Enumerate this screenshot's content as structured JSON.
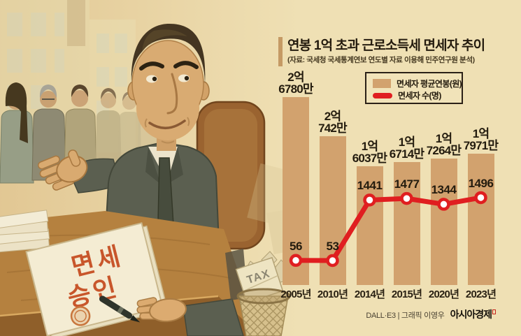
{
  "header": {
    "title": "연봉 1억 초과 근로소득세 면세자 추이",
    "subtitle": "(자료: 국세청 국세통계연보 연도별 자료 이용해 민주연구원 분석)"
  },
  "legend": {
    "items": [
      {
        "label": "면세자 평균연봉(원)",
        "type": "bar"
      },
      {
        "label": "면세자 수(명)",
        "type": "line"
      }
    ]
  },
  "chart_data": {
    "type": "bar+line",
    "categories": [
      "2005년",
      "2010년",
      "2014년",
      "2015년",
      "2020년",
      "2023년"
    ],
    "series": [
      {
        "name": "면세자 평균연봉(원)",
        "type": "bar",
        "unit": "만원",
        "values": [
          26780,
          20742,
          16037,
          16714,
          17264,
          17971
        ],
        "value_labels": [
          "2억\n6780만",
          "2억\n742만",
          "1억\n6037만",
          "1억\n6714만",
          "1억\n7264만",
          "1억\n7971만"
        ]
      },
      {
        "name": "면세자 수(명)",
        "type": "line",
        "values": [
          56,
          53,
          1441,
          1477,
          1344,
          1496
        ],
        "value_labels": [
          "56",
          "53",
          "1441",
          "1477",
          "1344",
          "1496"
        ]
      }
    ],
    "legend_position": "top-right",
    "grid": false,
    "title": "연봉 1억 초과 근로소득세 면세자 추이"
  },
  "illustration": {
    "document_text_line1": "면세",
    "document_text_line2": "승인",
    "tax_paper_label": "TAX"
  },
  "footer": {
    "credit": "DALL·E3 | 그래픽 이영우",
    "brand": "아시아경제"
  },
  "colors": {
    "background": "#efe0b4",
    "bar": "#d2a26e",
    "line": "#e01e20",
    "marker_fill": "#ffffff",
    "text": "#231b0e",
    "accent_bar": "#c59a64"
  }
}
